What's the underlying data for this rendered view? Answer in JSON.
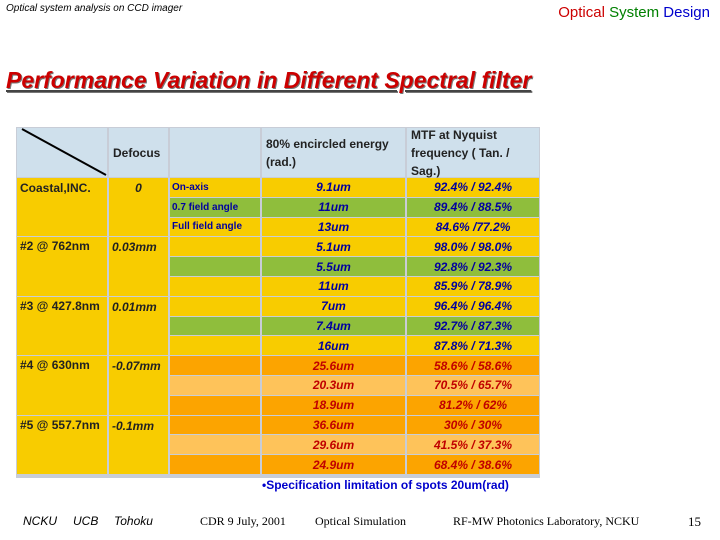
{
  "header": {
    "left_text": "Optical system analysis on CCD imager",
    "right_word1": "Optical",
    "right_word2": "System",
    "right_word3": "Design"
  },
  "title": "Performance Variation in Different Spectral filter",
  "table": {
    "headers": {
      "defocus": "Defocus",
      "encircled": "80% encircled energy (rad.)",
      "mtf": "MTF at Nyquist frequency ( Tan. / Sag.)"
    },
    "filters": [
      {
        "name": "Coastal,INC.",
        "defocus": "0"
      },
      {
        "name": "#2 @ 762nm",
        "defocus": "0.03mm"
      },
      {
        "name": "#3 @ 427.8nm",
        "defocus": "0.01mm"
      },
      {
        "name": "#4 @ 630nm",
        "defocus": "-0.07mm"
      },
      {
        "name": "#5 @ 557.7nm",
        "defocus": "-0.1mm"
      }
    ],
    "field_labels": [
      "On-axis",
      "0.7 field angle",
      "Full field angle"
    ],
    "rows": [
      {
        "energy": "9.1um",
        "mtf": "92.4% / 92.4%"
      },
      {
        "energy": "11um",
        "mtf": "89.4% / 88.5%"
      },
      {
        "energy": "13um",
        "mtf": "84.6% /77.2%"
      },
      {
        "energy": "5.1um",
        "mtf": "98.0% / 98.0%"
      },
      {
        "energy": "5.5um",
        "mtf": "92.8% / 92.3%"
      },
      {
        "energy": "11um",
        "mtf": "85.9% / 78.9%"
      },
      {
        "energy": "7um",
        "mtf": "96.4% / 96.4%"
      },
      {
        "energy": "7.4um",
        "mtf": "92.7% / 87.3%"
      },
      {
        "energy": "16um",
        "mtf": "87.8% / 71.3%"
      },
      {
        "energy": "25.6um",
        "mtf": "58.6% / 58.6%"
      },
      {
        "energy": "20.3um",
        "mtf": "70.5% / 65.7%"
      },
      {
        "energy": "18.9um",
        "mtf": "81.2% / 62%"
      },
      {
        "energy": "36.6um",
        "mtf": "30% / 30%"
      },
      {
        "energy": "29.6um",
        "mtf": "41.5% / 37.3%"
      },
      {
        "energy": "24.9um",
        "mtf": "68.4% / 38.6%"
      }
    ]
  },
  "note": "•Specification limitation of spots 20um(rad)",
  "footer": {
    "items": [
      "NCKU",
      "UCB",
      "Tohoku",
      "CDR 9 July, 2001",
      "Optical Simulation",
      "RF-MW Photonics Laboratory, NCKU"
    ],
    "page_number": "15"
  }
}
